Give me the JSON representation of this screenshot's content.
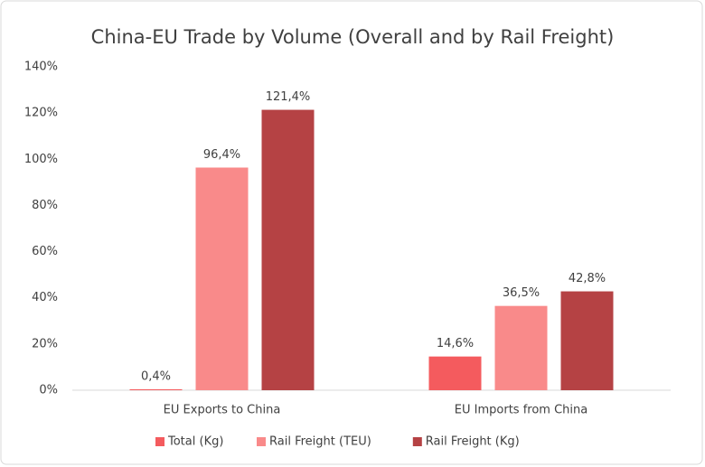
{
  "chart_data": {
    "type": "bar",
    "title": "China-EU Trade by Volume (Overall and by Rail Freight)",
    "categories": [
      "EU Exports to China",
      "EU Imports from China"
    ],
    "series": [
      {
        "name": "Total (Kg)",
        "color": "#f45b5e",
        "values": [
          0.4,
          14.6
        ],
        "value_labels": [
          "0,4%",
          "14,6%"
        ]
      },
      {
        "name": "Rail Freight (TEU)",
        "color": "#f98a8a",
        "values": [
          96.4,
          36.5
        ],
        "value_labels": [
          "96,4%",
          "36,5%"
        ]
      },
      {
        "name": "Rail Freight (Kg)",
        "color": "#b54244",
        "values": [
          121.4,
          42.8
        ],
        "value_labels": [
          "121,4%",
          "42,8%"
        ]
      }
    ],
    "ylim": [
      0,
      140
    ],
    "yticks": [
      {
        "value": 0,
        "label": "0%"
      },
      {
        "value": 20,
        "label": "20%"
      },
      {
        "value": 40,
        "label": "40%"
      },
      {
        "value": 60,
        "label": "60%"
      },
      {
        "value": 80,
        "label": "80%"
      },
      {
        "value": 100,
        "label": "100%"
      },
      {
        "value": 120,
        "label": "120%"
      },
      {
        "value": 140,
        "label": "140%"
      }
    ],
    "grid": false,
    "legend": "bottom"
  }
}
